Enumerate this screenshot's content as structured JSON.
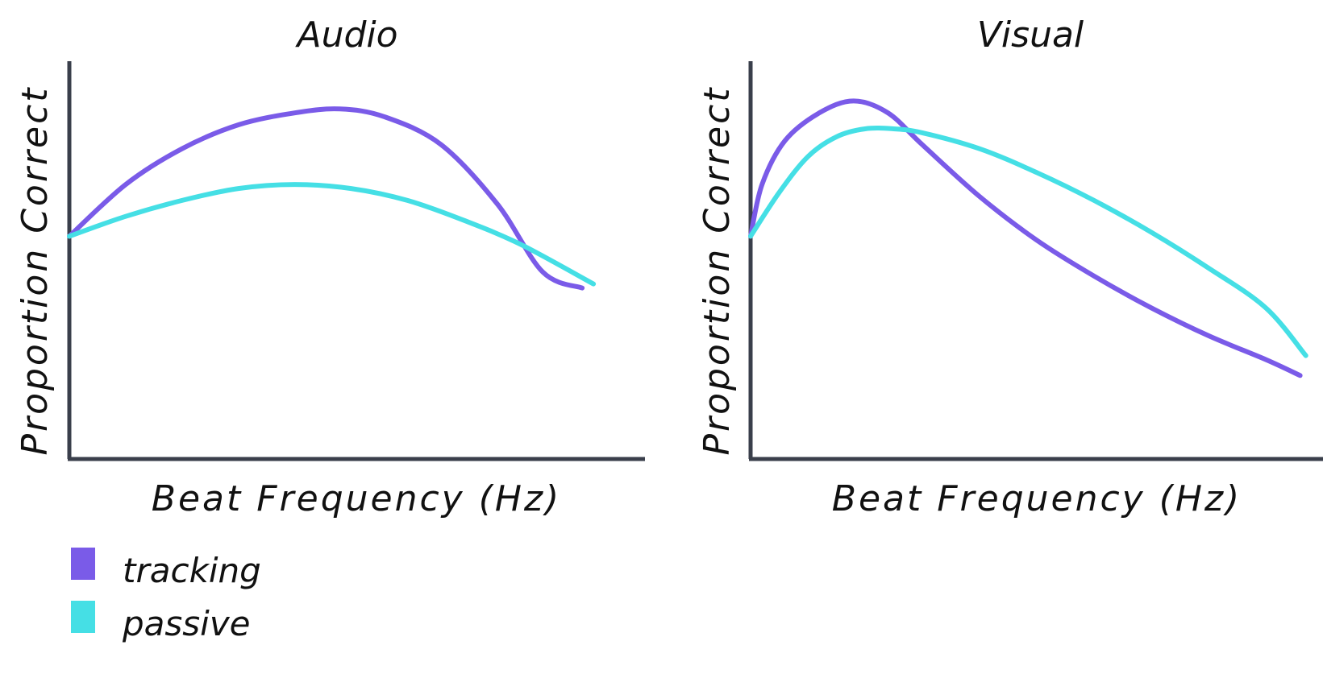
{
  "chart_data": [
    {
      "type": "line",
      "title": "Audio",
      "xlabel": "Beat Frequency (Hz)",
      "ylabel": "Proportion Correct",
      "x_ticks": "none",
      "y_ticks": "none",
      "xlim": [
        0,
        1
      ],
      "ylim": [
        0,
        1
      ],
      "grid": false,
      "series": [
        {
          "name": "tracking",
          "color": "#7a5be8",
          "x": [
            0.0,
            0.1,
            0.2,
            0.3,
            0.4,
            0.48,
            0.56,
            0.66,
            0.76,
            0.84,
            0.91
          ],
          "y": [
            0.56,
            0.69,
            0.78,
            0.84,
            0.87,
            0.88,
            0.86,
            0.79,
            0.64,
            0.47,
            0.43
          ]
        },
        {
          "name": "passive",
          "color": "#45dfe5",
          "x": [
            0.0,
            0.1,
            0.2,
            0.3,
            0.4,
            0.5,
            0.6,
            0.7,
            0.8,
            0.93
          ],
          "y": [
            0.56,
            0.61,
            0.65,
            0.68,
            0.69,
            0.68,
            0.65,
            0.6,
            0.54,
            0.44
          ]
        }
      ]
    },
    {
      "type": "line",
      "title": "Visual",
      "xlabel": "Beat Frequency (Hz)",
      "ylabel": "Proportion Correct",
      "x_ticks": "none",
      "y_ticks": "none",
      "xlim": [
        0,
        1
      ],
      "ylim": [
        0,
        1
      ],
      "grid": false,
      "series": [
        {
          "name": "tracking",
          "color": "#7a5be8",
          "x": [
            0.0,
            0.02,
            0.06,
            0.12,
            0.18,
            0.24,
            0.3,
            0.4,
            0.5,
            0.6,
            0.7,
            0.8,
            0.9,
            0.96
          ],
          "y": [
            0.56,
            0.69,
            0.8,
            0.87,
            0.9,
            0.87,
            0.79,
            0.66,
            0.55,
            0.46,
            0.38,
            0.31,
            0.25,
            0.21
          ]
        },
        {
          "name": "passive",
          "color": "#45dfe5",
          "x": [
            0.0,
            0.05,
            0.1,
            0.15,
            0.2,
            0.25,
            0.3,
            0.4,
            0.5,
            0.6,
            0.7,
            0.8,
            0.9,
            0.97
          ],
          "y": [
            0.56,
            0.67,
            0.76,
            0.81,
            0.83,
            0.83,
            0.82,
            0.78,
            0.72,
            0.65,
            0.57,
            0.48,
            0.38,
            0.26
          ]
        }
      ]
    }
  ],
  "legend": {
    "placement": "bottom-left",
    "items": [
      {
        "label": "tracking",
        "color": "#7a5be8"
      },
      {
        "label": "passive",
        "color": "#45dfe5"
      }
    ]
  }
}
